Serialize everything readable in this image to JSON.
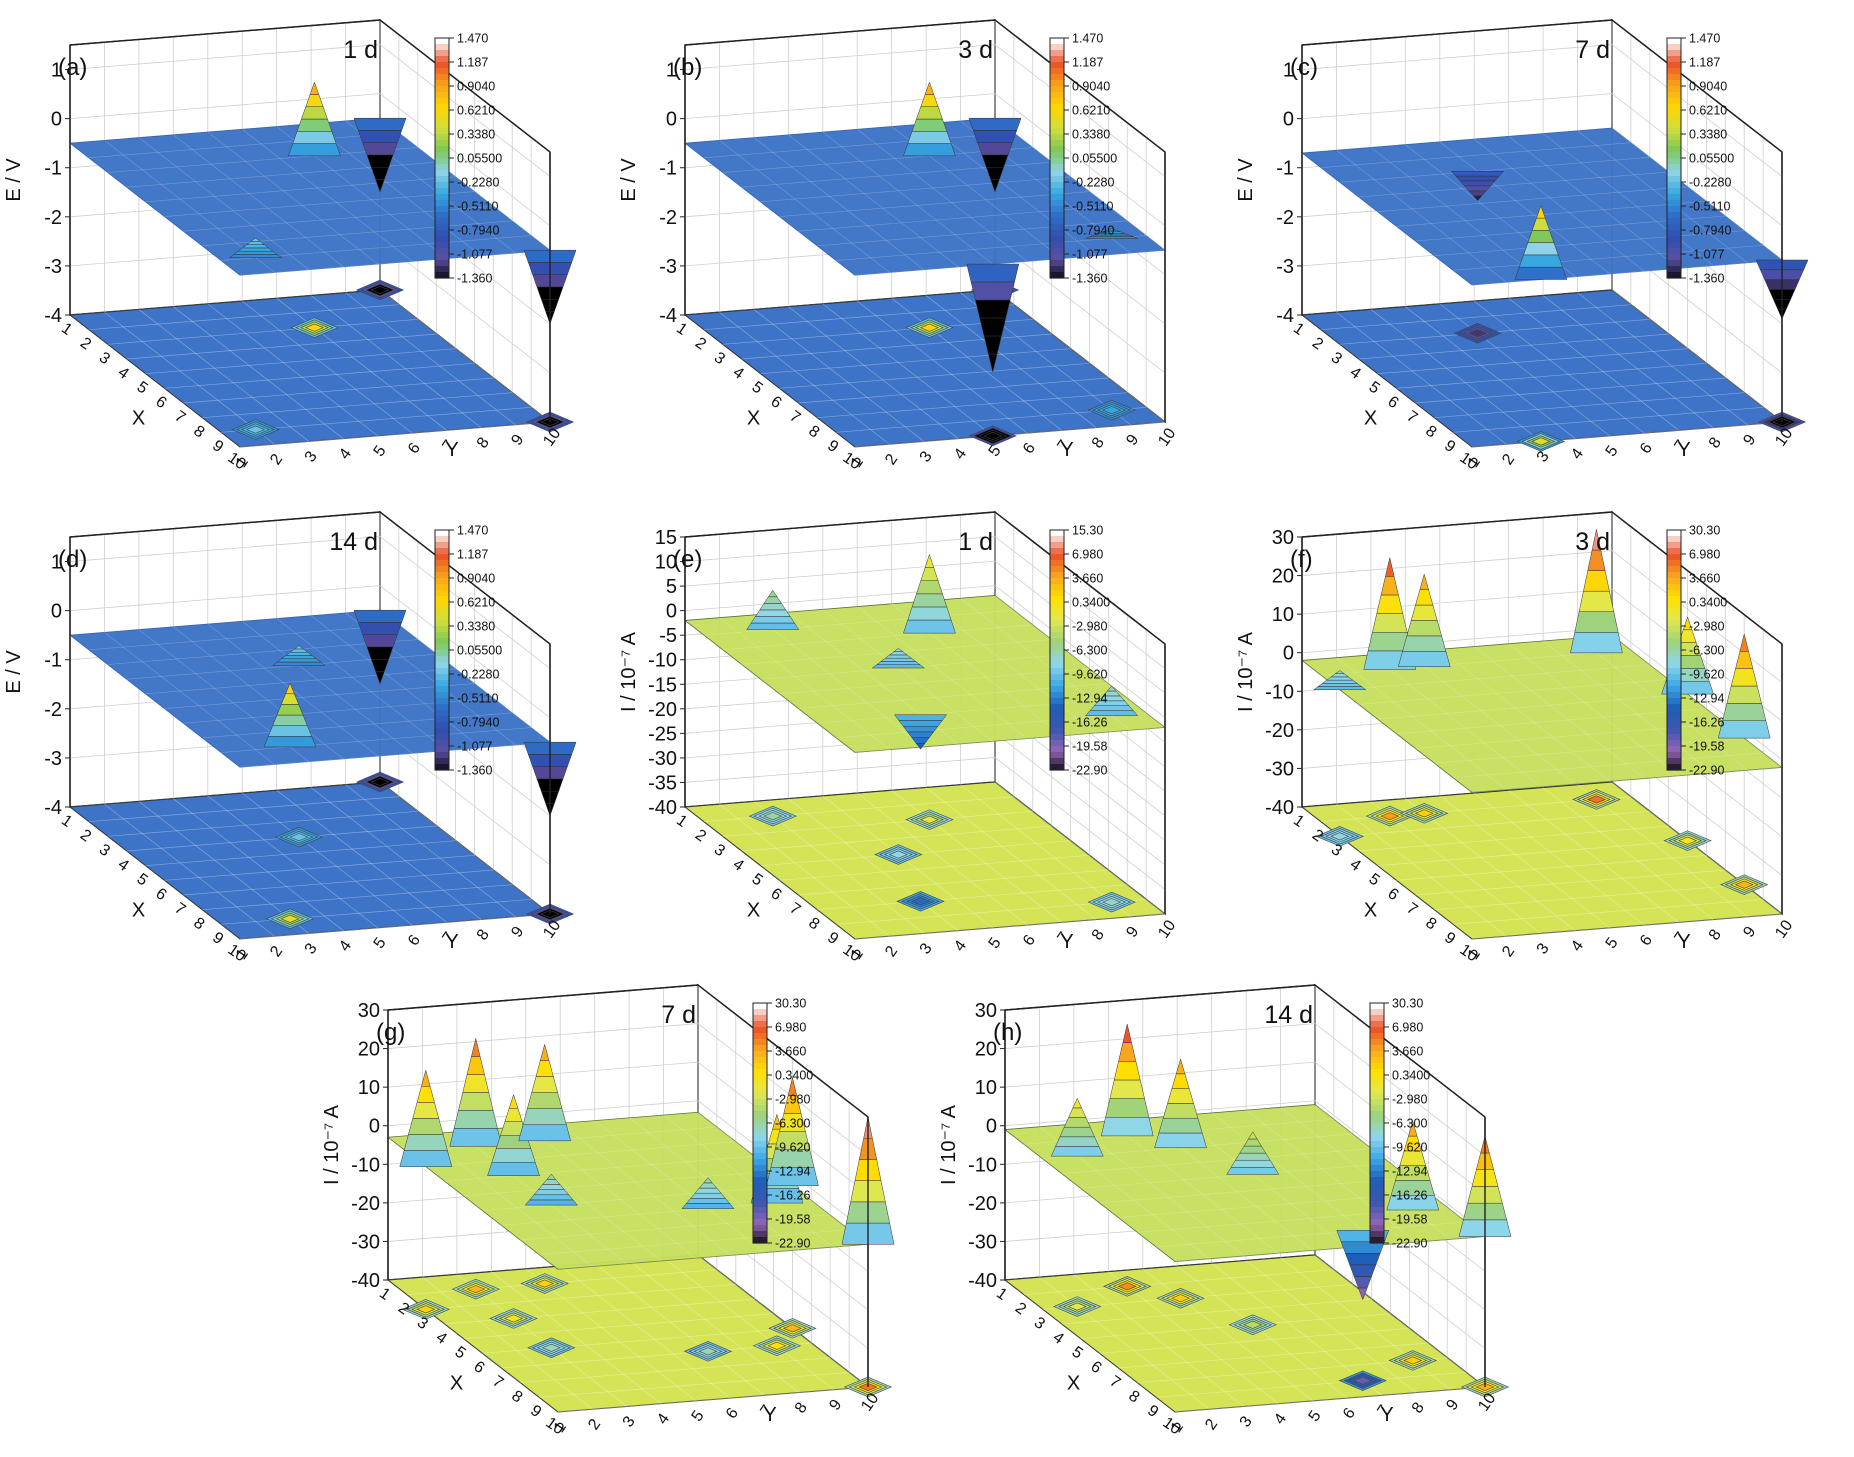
{
  "colors": {
    "e_scale": [
      "#000000",
      "#5a4fa3",
      "#2f4fb0",
      "#2f6ec8",
      "#36a8e0",
      "#8fd3e8",
      "#7ec855",
      "#d4de3a",
      "#ffd400",
      "#f7a21a",
      "#e8502a",
      "#ffffff"
    ],
    "i_scale": [
      "#000000",
      "#9466b5",
      "#3b56b0",
      "#1e5eb8",
      "#3da9e6",
      "#8fd7ea",
      "#9fd27a",
      "#e1e84e",
      "#ffe000",
      "#f8a71f",
      "#ea4f28",
      "#ffffff"
    ],
    "e_surface": "#3d74c7",
    "i_surface": "#b7d86a"
  },
  "chart_data": [
    {
      "id": "a",
      "type": "surface3d",
      "panel_label": "(a)",
      "time_label": "1 d",
      "zlabel": "E / V",
      "xlabel": "X",
      "ylabel": "Y",
      "z_ticks": [
        "1",
        "0",
        "-1",
        "-2",
        "-3",
        "-4"
      ],
      "zlim": [
        -4,
        1.5
      ],
      "x_ticks": [
        "1",
        "2",
        "3",
        "4",
        "5",
        "6",
        "7",
        "8",
        "9",
        "10"
      ],
      "y_ticks": [
        "1",
        "2",
        "3",
        "4",
        "5",
        "6",
        "7",
        "8",
        "9",
        "10"
      ],
      "baseline": -0.5,
      "features": [
        {
          "x": 1,
          "y": 10,
          "z": -2.0
        },
        {
          "x": 10,
          "y": 10,
          "z": -2.0
        },
        {
          "x": 3,
          "y": 7,
          "z": 1.0
        },
        {
          "x": 9,
          "y": 2,
          "z": -0.1
        }
      ],
      "colorbar": {
        "ticks": [
          "1.470",
          "1.187",
          "0.9040",
          "0.6210",
          "0.3380",
          "0.05500",
          "-0.2280",
          "-0.5110",
          "-0.7940",
          "-1.077",
          "-1.360"
        ]
      }
    },
    {
      "id": "b",
      "type": "surface3d",
      "panel_label": "(b)",
      "time_label": "3 d",
      "zlabel": "E / V",
      "xlabel": "X",
      "ylabel": "Y",
      "z_ticks": [
        "1",
        "0",
        "-1",
        "-2",
        "-3",
        "-4"
      ],
      "zlim": [
        -4,
        1.5
      ],
      "x_ticks": [
        "1",
        "2",
        "3",
        "4",
        "5",
        "6",
        "7",
        "8",
        "9",
        "10"
      ],
      "y_ticks": [
        "1",
        "2",
        "3",
        "4",
        "5",
        "6",
        "7",
        "8",
        "9",
        "10"
      ],
      "baseline": -0.5,
      "features": [
        {
          "x": 1,
          "y": 10,
          "z": -2.0
        },
        {
          "x": 10,
          "y": 5,
          "z": -2.7
        },
        {
          "x": 3,
          "y": 7,
          "z": 1.0
        },
        {
          "x": 9,
          "y": 9,
          "z": -0.3
        }
      ],
      "colorbar": {
        "ticks": [
          "1.470",
          "1.187",
          "0.9040",
          "0.6210",
          "0.3380",
          "0.05500",
          "-0.2280",
          "-0.5110",
          "-0.7940",
          "-1.077",
          "-1.360"
        ]
      }
    },
    {
      "id": "c",
      "type": "surface3d",
      "panel_label": "(c)",
      "time_label": "7 d",
      "zlabel": "E / V",
      "xlabel": "X",
      "ylabel": "Y",
      "z_ticks": [
        "1",
        "0",
        "-1",
        "-2",
        "-3",
        "-4"
      ],
      "zlim": [
        -4,
        1.5
      ],
      "x_ticks": [
        "1",
        "2",
        "3",
        "4",
        "5",
        "6",
        "7",
        "8",
        "9",
        "10"
      ],
      "y_ticks": [
        "1",
        "2",
        "3",
        "4",
        "5",
        "6",
        "7",
        "8",
        "9",
        "10"
      ],
      "baseline": -0.7,
      "features": [
        {
          "x": 10,
          "y": 10,
          "z": -1.9
        },
        {
          "x": 10,
          "y": 3,
          "z": 0.8
        },
        {
          "x": 3,
          "y": 5,
          "z": -1.3
        }
      ],
      "colorbar": {
        "ticks": [
          "1.470",
          "1.187",
          "0.9040",
          "0.6210",
          "0.3380",
          "0.05500",
          "-0.2280",
          "-0.5110",
          "-0.7940",
          "-1.077",
          "-1.360"
        ]
      }
    },
    {
      "id": "d",
      "type": "surface3d",
      "panel_label": "(d)",
      "time_label": "14 d",
      "zlabel": "E / V",
      "xlabel": "X",
      "ylabel": "Y",
      "z_ticks": [
        "1",
        "0",
        "-1",
        "-2",
        "-3",
        "-4"
      ],
      "zlim": [
        -4,
        1.5
      ],
      "x_ticks": [
        "1",
        "2",
        "3",
        "4",
        "5",
        "6",
        "7",
        "8",
        "9",
        "10"
      ],
      "y_ticks": [
        "1",
        "2",
        "3",
        "4",
        "5",
        "6",
        "7",
        "8",
        "9",
        "10"
      ],
      "baseline": -0.5,
      "features": [
        {
          "x": 1,
          "y": 10,
          "z": -2.0
        },
        {
          "x": 10,
          "y": 10,
          "z": -2.0
        },
        {
          "x": 9,
          "y": 3,
          "z": 0.8
        },
        {
          "x": 4,
          "y": 6,
          "z": -0.1
        }
      ],
      "colorbar": {
        "ticks": [
          "1.470",
          "1.187",
          "0.9040",
          "0.6210",
          "0.3380",
          "0.05500",
          "-0.2280",
          "-0.5110",
          "-0.7940",
          "-1.077",
          "-1.360"
        ]
      }
    },
    {
      "id": "e",
      "type": "surface3d",
      "panel_label": "(e)",
      "time_label": "1 d",
      "zlabel": "I / 10⁻⁷ A",
      "xlabel": "X",
      "ylabel": "Y",
      "z_ticks": [
        "15",
        "10",
        "5",
        "0",
        "-5",
        "-10",
        "-15",
        "-20",
        "-25",
        "-30",
        "-35",
        "-40"
      ],
      "zlim": [
        -40,
        15
      ],
      "x_ticks": [
        "1",
        "2",
        "3",
        "4",
        "5",
        "6",
        "7",
        "8",
        "9",
        "10"
      ],
      "y_ticks": [
        "1",
        "2",
        "3",
        "4",
        "5",
        "6",
        "7",
        "8",
        "9",
        "10"
      ],
      "baseline": -2,
      "features": [
        {
          "x": 3,
          "y": 7,
          "z": 14
        },
        {
          "x": 2,
          "y": 3,
          "z": 6
        },
        {
          "x": 9,
          "y": 9,
          "z": 4
        },
        {
          "x": 8,
          "y": 4,
          "z": -9
        },
        {
          "x": 5,
          "y": 5,
          "z": 2
        }
      ],
      "colorbar": {
        "ticks": [
          "15.30",
          "6.980",
          "3.660",
          "0.3400",
          "-2.980",
          "-6.300",
          "-9.620",
          "-12.94",
          "-16.26",
          "-19.58",
          "-22.90"
        ]
      }
    },
    {
      "id": "f",
      "type": "surface3d",
      "panel_label": "(f)",
      "time_label": "3 d",
      "zlabel": "I / 10⁻⁷ A",
      "xlabel": "X",
      "ylabel": "Y",
      "z_ticks": [
        "30",
        "20",
        "10",
        "0",
        "-10",
        "-20",
        "-30",
        "-40"
      ],
      "zlim": [
        -40,
        30
      ],
      "x_ticks": [
        "1",
        "2",
        "3",
        "4",
        "5",
        "6",
        "7",
        "8",
        "9",
        "10"
      ],
      "y_ticks": [
        "1",
        "2",
        "3",
        "4",
        "5",
        "6",
        "7",
        "8",
        "9",
        "10"
      ],
      "baseline": -2,
      "features": [
        {
          "x": 2,
          "y": 3,
          "z": 27
        },
        {
          "x": 2,
          "y": 4,
          "z": 22
        },
        {
          "x": 2,
          "y": 9,
          "z": 30
        },
        {
          "x": 5,
          "y": 10,
          "z": 18
        },
        {
          "x": 8,
          "y": 10,
          "z": 25
        },
        {
          "x": 3,
          "y": 1,
          "z": 3
        }
      ],
      "colorbar": {
        "ticks": [
          "30.30",
          "6.980",
          "3.660",
          "0.3400",
          "-2.980",
          "-6.300",
          "-9.620",
          "-12.94",
          "-16.26",
          "-19.58",
          "-22.90"
        ]
      }
    },
    {
      "id": "g",
      "type": "surface3d",
      "panel_label": "(g)",
      "time_label": "7 d",
      "zlabel": "I / 10⁻⁷ A",
      "xlabel": "X",
      "ylabel": "Y",
      "z_ticks": [
        "30",
        "20",
        "10",
        "0",
        "-10",
        "-20",
        "-30",
        "-40"
      ],
      "zlim": [
        -40,
        30
      ],
      "x_ticks": [
        "1",
        "2",
        "3",
        "4",
        "5",
        "6",
        "7",
        "8",
        "9",
        "10"
      ],
      "y_ticks": [
        "1",
        "2",
        "3",
        "4",
        "5",
        "6",
        "7",
        "8",
        "9",
        "10"
      ],
      "baseline": -3,
      "features": [
        {
          "x": 3,
          "y": 1,
          "z": 22
        },
        {
          "x": 2,
          "y": 3,
          "z": 25
        },
        {
          "x": 4,
          "y": 3,
          "z": 18
        },
        {
          "x": 2,
          "y": 5,
          "z": 22
        },
        {
          "x": 6,
          "y": 3,
          "z": 5
        },
        {
          "x": 7,
          "y": 7,
          "z": 5
        },
        {
          "x": 7,
          "y": 9,
          "z": 20
        },
        {
          "x": 6,
          "y": 10,
          "z": 25
        },
        {
          "x": 10,
          "y": 10,
          "z": 30
        }
      ],
      "colorbar": {
        "ticks": [
          "30.30",
          "6.980",
          "3.660",
          "0.3400",
          "-2.980",
          "-6.300",
          "-9.620",
          "-12.94",
          "-16.26",
          "-19.58",
          "-22.90"
        ]
      }
    },
    {
      "id": "h",
      "type": "surface3d",
      "panel_label": "(h)",
      "time_label": "14 d",
      "zlabel": "I / 10⁻⁷ A",
      "xlabel": "X",
      "ylabel": "Y",
      "z_ticks": [
        "30",
        "20",
        "10",
        "0",
        "-10",
        "-20",
        "-30",
        "-40"
      ],
      "zlim": [
        -40,
        30
      ],
      "x_ticks": [
        "1",
        "2",
        "3",
        "4",
        "5",
        "6",
        "7",
        "8",
        "9",
        "10"
      ],
      "y_ticks": [
        "1",
        "2",
        "3",
        "4",
        "5",
        "6",
        "7",
        "8",
        "9",
        "10"
      ],
      "baseline": -1,
      "features": [
        {
          "x": 3,
          "y": 2,
          "z": 14
        },
        {
          "x": 2,
          "y": 4,
          "z": 28
        },
        {
          "x": 3,
          "y": 5,
          "z": 22
        },
        {
          "x": 5,
          "y": 6,
          "z": 10
        },
        {
          "x": 8,
          "y": 9,
          "z": 22
        },
        {
          "x": 10,
          "y": 10,
          "z": 25
        },
        {
          "x": 9,
          "y": 7,
          "z": -19
        }
      ],
      "colorbar": {
        "ticks": [
          "30.30",
          "6.980",
          "3.660",
          "0.3400",
          "-2.980",
          "-6.300",
          "-9.620",
          "-12.94",
          "-16.26",
          "-19.58",
          "-22.90"
        ]
      }
    }
  ]
}
